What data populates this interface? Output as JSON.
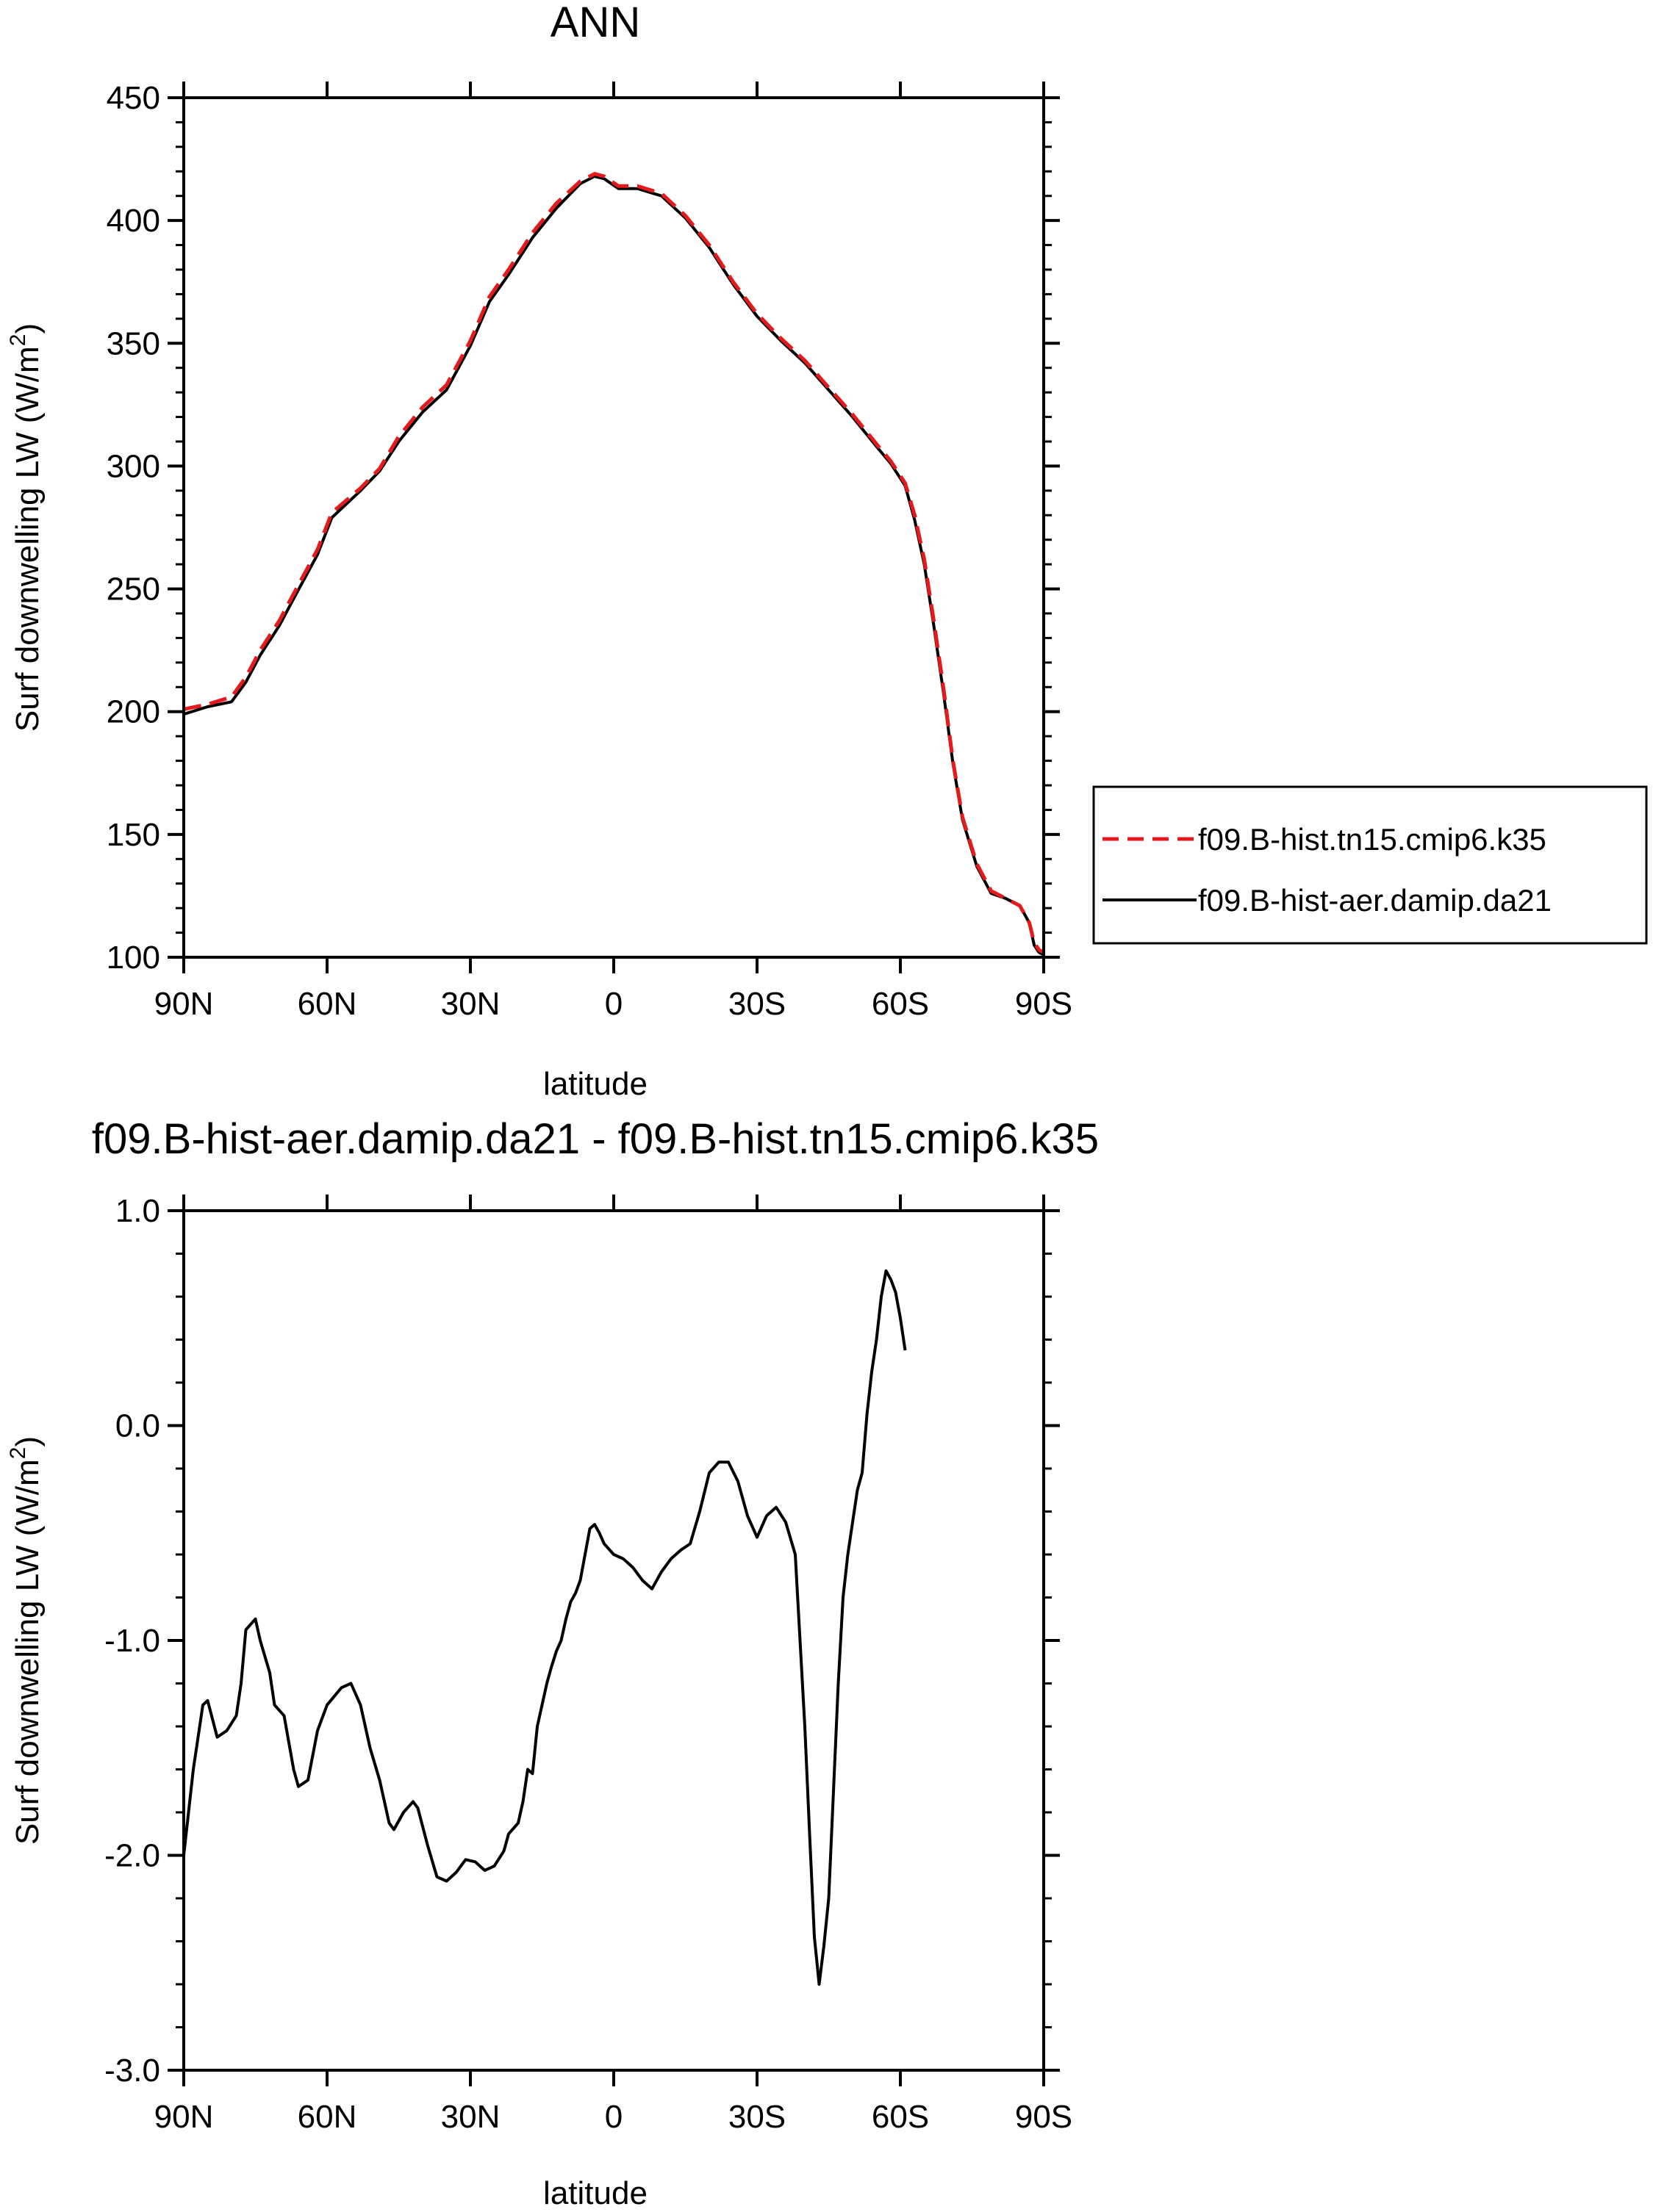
{
  "chart_data": [
    {
      "type": "line",
      "title": "ANN",
      "xlabel": "latitude",
      "ylabel": "Surf downwelling LW (W/m",
      "ylabel_superscript": "2",
      "ylabel_suffix": ")",
      "xlim": [
        90,
        -90
      ],
      "ylim": [
        100,
        450
      ],
      "xticks": [
        {
          "value": 90,
          "label": "90N"
        },
        {
          "value": 60,
          "label": "60N"
        },
        {
          "value": 30,
          "label": "30N"
        },
        {
          "value": 0,
          "label": "0"
        },
        {
          "value": -30,
          "label": "30S"
        },
        {
          "value": -60,
          "label": "60S"
        },
        {
          "value": -90,
          "label": "90S"
        }
      ],
      "yticks": [
        {
          "value": 100,
          "label": "100"
        },
        {
          "value": 150,
          "label": "150"
        },
        {
          "value": 200,
          "label": "200"
        },
        {
          "value": 250,
          "label": "250"
        },
        {
          "value": 300,
          "label": "300"
        },
        {
          "value": 350,
          "label": "350"
        },
        {
          "value": 400,
          "label": "400"
        },
        {
          "value": 450,
          "label": "450"
        }
      ],
      "legend": {
        "position": "right"
      },
      "series": [
        {
          "name": "f09.B-hist.tn15.cmip6.k35",
          "color": "#e41a1c",
          "dash": "dashed",
          "points": [
            [
              90,
              201
            ],
            [
              85,
              203
            ],
            [
              80,
              206
            ],
            [
              77,
              214
            ],
            [
              74,
              225
            ],
            [
              70,
              237
            ],
            [
              67,
              248
            ],
            [
              62,
              266
            ],
            [
              59,
              281
            ],
            [
              53,
              291
            ],
            [
              49,
              299
            ],
            [
              45,
              312
            ],
            [
              40,
              324
            ],
            [
              35,
              333
            ],
            [
              30,
              351
            ],
            [
              26,
              369
            ],
            [
              22,
              380
            ],
            [
              17,
              395
            ],
            [
              12,
              407
            ],
            [
              7,
              416
            ],
            [
              4,
              419
            ],
            [
              2,
              418
            ],
            [
              -1,
              414
            ],
            [
              -5,
              414
            ],
            [
              -10,
              411
            ],
            [
              -15,
              402
            ],
            [
              -20,
              390
            ],
            [
              -25,
              375
            ],
            [
              -30,
              362
            ],
            [
              -35,
              352
            ],
            [
              -40,
              343
            ],
            [
              -45,
              332
            ],
            [
              -50,
              321
            ],
            [
              -55,
              309
            ],
            [
              -58,
              302
            ],
            [
              -61,
              293
            ],
            [
              -63,
              280
            ],
            [
              -65,
              262
            ],
            [
              -67,
              237
            ],
            [
              -69,
              210
            ],
            [
              -71,
              180
            ],
            [
              -73,
              157
            ],
            [
              -76,
              138
            ],
            [
              -79,
              127
            ],
            [
              -82,
              124
            ],
            [
              -85,
              121
            ],
            [
              -87,
              114
            ],
            [
              -88,
              106
            ],
            [
              -89,
              103
            ],
            [
              -90,
              102
            ]
          ]
        },
        {
          "name": "f09.B-hist-aer.damip.da21",
          "color": "#000000",
          "dash": "solid",
          "points": [
            [
              90,
              199
            ],
            [
              85,
              202
            ],
            [
              80,
              204
            ],
            [
              77,
              212
            ],
            [
              74,
              223
            ],
            [
              70,
              235
            ],
            [
              67,
              246
            ],
            [
              62,
              264
            ],
            [
              59,
              279
            ],
            [
              53,
              290
            ],
            [
              49,
              298
            ],
            [
              45,
              310
            ],
            [
              40,
              322
            ],
            [
              35,
              331
            ],
            [
              30,
              349
            ],
            [
              26,
              367
            ],
            [
              22,
              378
            ],
            [
              17,
              393
            ],
            [
              12,
              405
            ],
            [
              7,
              415
            ],
            [
              4,
              418
            ],
            [
              2,
              417
            ],
            [
              -1,
              413
            ],
            [
              -5,
              413
            ],
            [
              -10,
              410
            ],
            [
              -15,
              401
            ],
            [
              -20,
              389
            ],
            [
              -25,
              374
            ],
            [
              -30,
              361
            ],
            [
              -35,
              351
            ],
            [
              -40,
              342
            ],
            [
              -45,
              331
            ],
            [
              -50,
              320
            ],
            [
              -55,
              308
            ],
            [
              -58,
              301
            ],
            [
              -61,
              292
            ],
            [
              -63,
              278
            ],
            [
              -65,
              260
            ],
            [
              -67,
              235
            ],
            [
              -69,
              208
            ],
            [
              -71,
              179
            ],
            [
              -73,
              156
            ],
            [
              -76,
              137
            ],
            [
              -79,
              126
            ],
            [
              -82,
              124
            ],
            [
              -85,
              121
            ],
            [
              -87,
              114
            ],
            [
              -88,
              105
            ],
            [
              -89,
              102
            ],
            [
              -90,
              101
            ]
          ]
        }
      ]
    },
    {
      "type": "line",
      "title": "f09.B-hist-aer.damip.da21 - f09.B-hist.tn15.cmip6.k35",
      "xlabel": "latitude",
      "ylabel": "Surf downwelling LW (W/m",
      "ylabel_superscript": "2",
      "ylabel_suffix": ")",
      "xlim": [
        90,
        -90
      ],
      "ylim": [
        -3.0,
        1.0
      ],
      "xticks": [
        {
          "value": 90,
          "label": "90N"
        },
        {
          "value": 60,
          "label": "60N"
        },
        {
          "value": 30,
          "label": "30N"
        },
        {
          "value": 0,
          "label": "0"
        },
        {
          "value": -30,
          "label": "30S"
        },
        {
          "value": -60,
          "label": "60S"
        },
        {
          "value": -90,
          "label": "90S"
        }
      ],
      "yticks": [
        {
          "value": -3.0,
          "label": "-3.0"
        },
        {
          "value": -2.0,
          "label": "-2.0"
        },
        {
          "value": -1.0,
          "label": "-1.0"
        },
        {
          "value": 0.0,
          "label": "0.0"
        },
        {
          "value": 1.0,
          "label": "1.0"
        }
      ],
      "series": [
        {
          "color": "#000000",
          "dash": "solid",
          "points": [
            [
              90,
              -2.0
            ],
            [
              88,
              -1.6
            ],
            [
              86,
              -1.3
            ],
            [
              85,
              -1.28
            ],
            [
              83,
              -1.45
            ],
            [
              81,
              -1.42
            ],
            [
              79,
              -1.35
            ],
            [
              78,
              -1.2
            ],
            [
              77,
              -0.95
            ],
            [
              75,
              -0.9
            ],
            [
              74,
              -1.0
            ],
            [
              72,
              -1.15
            ],
            [
              71,
              -1.3
            ],
            [
              69,
              -1.35
            ],
            [
              67,
              -1.6
            ],
            [
              66,
              -1.68
            ],
            [
              64,
              -1.65
            ],
            [
              62,
              -1.42
            ],
            [
              60,
              -1.3
            ],
            [
              57,
              -1.22
            ],
            [
              55,
              -1.2
            ],
            [
              53,
              -1.3
            ],
            [
              51,
              -1.5
            ],
            [
              49,
              -1.65
            ],
            [
              47,
              -1.85
            ],
            [
              46,
              -1.88
            ],
            [
              44,
              -1.8
            ],
            [
              42,
              -1.75
            ],
            [
              41,
              -1.78
            ],
            [
              39,
              -1.95
            ],
            [
              37,
              -2.1
            ],
            [
              35,
              -2.12
            ],
            [
              33,
              -2.08
            ],
            [
              31,
              -2.02
            ],
            [
              29,
              -2.03
            ],
            [
              27,
              -2.07
            ],
            [
              25,
              -2.05
            ],
            [
              23,
              -1.98
            ],
            [
              22,
              -1.9
            ],
            [
              20,
              -1.85
            ],
            [
              19,
              -1.75
            ],
            [
              18,
              -1.6
            ],
            [
              17,
              -1.62
            ],
            [
              16,
              -1.4
            ],
            [
              15,
              -1.3
            ],
            [
              14,
              -1.2
            ],
            [
              13,
              -1.12
            ],
            [
              12,
              -1.05
            ],
            [
              11,
              -1.0
            ],
            [
              10,
              -0.9
            ],
            [
              9,
              -0.82
            ],
            [
              8,
              -0.78
            ],
            [
              7,
              -0.72
            ],
            [
              6,
              -0.6
            ],
            [
              5,
              -0.48
            ],
            [
              4,
              -0.46
            ],
            [
              3,
              -0.5
            ],
            [
              2,
              -0.55
            ],
            [
              0,
              -0.6
            ],
            [
              -2,
              -0.62
            ],
            [
              -4,
              -0.66
            ],
            [
              -6,
              -0.72
            ],
            [
              -8,
              -0.76
            ],
            [
              -10,
              -0.68
            ],
            [
              -12,
              -0.62
            ],
            [
              -14,
              -0.58
            ],
            [
              -16,
              -0.55
            ],
            [
              -18,
              -0.4
            ],
            [
              -20,
              -0.22
            ],
            [
              -22,
              -0.17
            ],
            [
              -24,
              -0.17
            ],
            [
              -26,
              -0.26
            ],
            [
              -28,
              -0.42
            ],
            [
              -30,
              -0.52
            ],
            [
              -32,
              -0.42
            ],
            [
              -34,
              -0.38
            ],
            [
              -36,
              -0.45
            ],
            [
              -38,
              -0.6
            ],
            [
              -39,
              -1.0
            ],
            [
              -40,
              -1.4
            ],
            [
              -41,
              -1.9
            ],
            [
              -42,
              -2.38
            ],
            [
              -43,
              -2.6
            ],
            [
              -44,
              -2.42
            ],
            [
              -45,
              -2.2
            ],
            [
              -46,
              -1.7
            ],
            [
              -47,
              -1.2
            ],
            [
              -48,
              -0.8
            ],
            [
              -49,
              -0.6
            ],
            [
              -50,
              -0.45
            ],
            [
              -51,
              -0.3
            ],
            [
              -52,
              -0.22
            ],
            [
              -53,
              0.05
            ],
            [
              -54,
              0.25
            ],
            [
              -55,
              0.4
            ],
            [
              -56,
              0.6
            ],
            [
              -57,
              0.72
            ],
            [
              -58,
              0.68
            ],
            [
              -59,
              0.62
            ],
            [
              -60,
              0.5
            ],
            [
              -61,
              0.35
            ]
          ]
        }
      ]
    }
  ]
}
